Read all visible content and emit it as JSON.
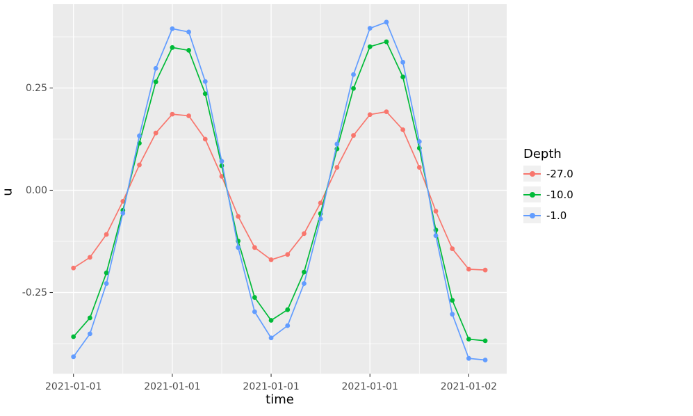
{
  "figure": {
    "background": "#ffffff",
    "panel_background": "#ebebeb",
    "gridline_color": "#ffffff",
    "tick_mark_color": "#333333",
    "tick_label_color": "#4d4d4d",
    "legend_key_background": "#f0f0f0"
  },
  "axes": {
    "x": {
      "title": "time",
      "tick_labels": [
        "2021-01-01",
        "2021-01-01",
        "2021-01-01",
        "2021-01-01",
        "2021-01-02"
      ]
    },
    "y": {
      "title": "u",
      "tick_labels": [
        "0.25",
        "0.00",
        "-0.25"
      ]
    }
  },
  "legend": {
    "title": "Depth",
    "items": [
      {
        "label": "-27.0",
        "color": "#F8766D"
      },
      {
        "label": "-10.0",
        "color": "#00BA38"
      },
      {
        "label": "-1.0",
        "color": "#619CFF"
      }
    ]
  },
  "chart_data": {
    "type": "line",
    "title": "",
    "xlabel": "time",
    "ylabel": "u",
    "legend_title": "Depth",
    "legend_position": "right",
    "grid": "white major+minor on grey panel",
    "x_hours": [
      0,
      1,
      2,
      3,
      4,
      5,
      6,
      7,
      8,
      9,
      10,
      11,
      12,
      13,
      14,
      15,
      16,
      17,
      18,
      19,
      20,
      21,
      22,
      23,
      24,
      25
    ],
    "x_tick_hours": [
      0,
      6,
      12,
      18,
      24
    ],
    "x_tick_labels": [
      "2021-01-01",
      "2021-01-01",
      "2021-01-01",
      "2021-01-01",
      "2021-01-02"
    ],
    "x_minor_hours": [
      3,
      9,
      15,
      21
    ],
    "y_major_ticks": [
      0.25,
      0.0,
      -0.25
    ],
    "y_minor_ticks": [
      0.375,
      0.125,
      -0.125,
      -0.375
    ],
    "ylim": [
      -0.455,
      0.455
    ],
    "series": [
      {
        "name": "-27.0",
        "color": "#F8766D",
        "values": [
          -0.19,
          -0.164,
          -0.108,
          -0.027,
          0.062,
          0.14,
          0.186,
          0.182,
          0.125,
          0.034,
          -0.064,
          -0.14,
          -0.17,
          -0.157,
          -0.106,
          -0.031,
          0.056,
          0.134,
          0.185,
          0.192,
          0.148,
          0.056,
          -0.051,
          -0.143,
          -0.193,
          -0.195
        ]
      },
      {
        "name": "-10.0",
        "color": "#00BA38",
        "values": [
          -0.358,
          -0.312,
          -0.202,
          -0.049,
          0.115,
          0.265,
          0.349,
          0.342,
          0.236,
          0.06,
          -0.124,
          -0.262,
          -0.318,
          -0.292,
          -0.2,
          -0.057,
          0.101,
          0.249,
          0.351,
          0.363,
          0.277,
          0.103,
          -0.097,
          -0.269,
          -0.364,
          -0.368
        ]
      },
      {
        "name": "-1.0",
        "color": "#619CFF",
        "values": [
          -0.407,
          -0.351,
          -0.228,
          -0.056,
          0.133,
          0.298,
          0.395,
          0.387,
          0.266,
          0.071,
          -0.14,
          -0.297,
          -0.361,
          -0.331,
          -0.228,
          -0.07,
          0.113,
          0.283,
          0.396,
          0.411,
          0.313,
          0.119,
          -0.111,
          -0.303,
          -0.411,
          -0.415
        ]
      }
    ]
  }
}
